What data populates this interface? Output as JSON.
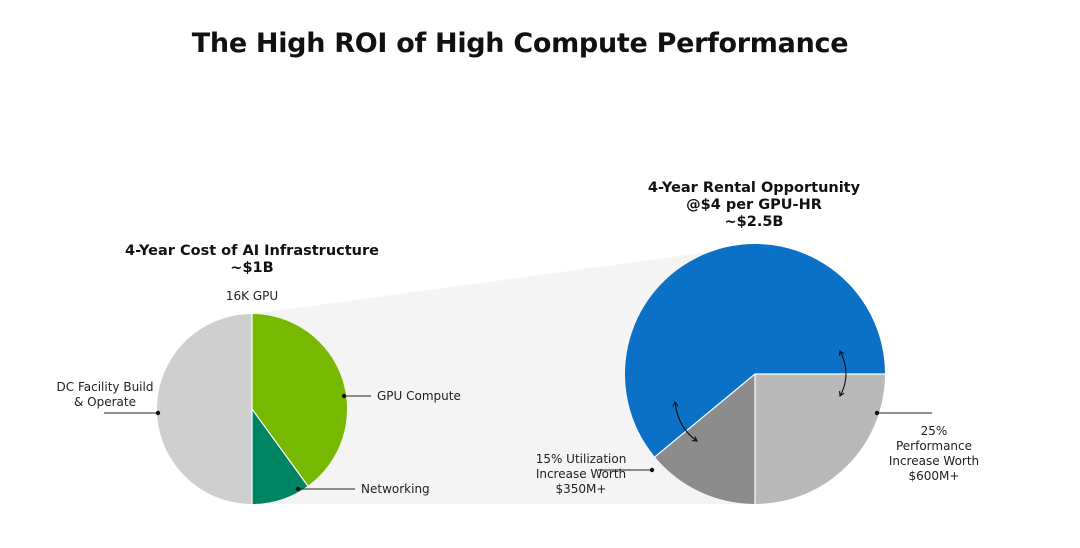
{
  "page": {
    "title": "The High ROI of High Compute Performance"
  },
  "colors": {
    "dc_facility": "#cfcfcf",
    "gpu_compute": "#76b900",
    "networking": "#008564",
    "rental_base": "#0a71c6",
    "utilization": "#8c8c8c",
    "performance": "#b9b9b9",
    "connector": "#f4f4f4"
  },
  "chart_data": [
    {
      "type": "pie",
      "title": "4-Year Cost of AI Infrastructure",
      "subtitle": "~$1B",
      "top_label": "16K GPU",
      "slices": [
        {
          "label": "GPU Compute",
          "value": 40
        },
        {
          "label": "Networking",
          "value": 10
        },
        {
          "label": "DC Facility Build & Operate",
          "value": 50
        }
      ]
    },
    {
      "type": "pie",
      "title_lines": [
        "4-Year Rental Opportunity",
        "@$4 per GPU-HR",
        "~$2.5B"
      ],
      "slices": [
        {
          "label": "",
          "value": 61
        },
        {
          "label": "15% Utilization Increase Worth $350M+",
          "value": 14
        },
        {
          "label": "25% Performance Increase Worth $600M+",
          "value": 25
        }
      ]
    }
  ],
  "labels": {
    "gpu_compute": "GPU Compute",
    "networking": "Networking",
    "dc_line1": "DC Facility Build",
    "dc_line2": "& Operate",
    "util_line1": "15% Utilization",
    "util_line2": "Increase Worth",
    "util_line3": "$350M+",
    "perf_line1": "25%",
    "perf_line2": "Performance",
    "perf_line3": "Increase Worth",
    "perf_line4": "$600M+"
  }
}
